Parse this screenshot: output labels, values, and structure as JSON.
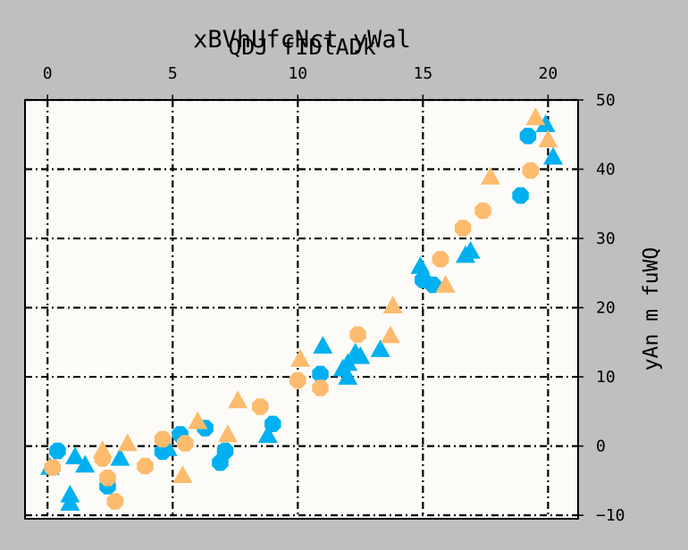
{
  "chart_data": {
    "type": "scatter",
    "title": "xBVhUfcNct yWal",
    "subtitle": "QDJ fIDlADk",
    "xlabel": "",
    "ylabel": "yAn m fuWQ",
    "xlim": [
      -0.9,
      21.2
    ],
    "ylim": [
      -10.5,
      50.0
    ],
    "xticks": [
      "0",
      "5",
      "10",
      "15",
      "20"
    ],
    "yticks": [
      "−10",
      "0",
      "10",
      "20",
      "30",
      "40",
      "50"
    ],
    "grid": true,
    "colors": {
      "triangle": "#00b0f0",
      "circle": "#00b0f0",
      "orange_circle": "#fdbb6e",
      "orange_triangle": "#fdbb6e",
      "background": "#fcfbf7",
      "figure": "#bfbfbf"
    },
    "series": [
      {
        "marker": "triangle",
        "color": "#00b0f0",
        "points": [
          [
            0.1,
            -3.0
          ],
          [
            0.9,
            -7.0
          ],
          [
            0.9,
            -8.2
          ],
          [
            1.1,
            -1.5
          ],
          [
            1.5,
            -2.7
          ],
          [
            2.9,
            -1.7
          ],
          [
            4.8,
            -0.3
          ],
          [
            8.8,
            1.6
          ],
          [
            11.0,
            14.5
          ],
          [
            11.8,
            11.2
          ],
          [
            12.0,
            12.0
          ],
          [
            12.3,
            13.5
          ],
          [
            12.5,
            13.0
          ],
          [
            12.0,
            10.0
          ],
          [
            13.3,
            14.0
          ],
          [
            14.9,
            26.0
          ],
          [
            16.7,
            27.6
          ],
          [
            16.9,
            28.2
          ],
          [
            19.9,
            46.5
          ],
          [
            20.2,
            41.8
          ]
        ]
      },
      {
        "marker": "circle",
        "color": "#00b0f0",
        "points": [
          [
            0.4,
            -0.7
          ],
          [
            2.4,
            -5.8
          ],
          [
            4.6,
            -0.8
          ],
          [
            5.3,
            1.7
          ],
          [
            6.3,
            2.6
          ],
          [
            7.1,
            -0.7
          ],
          [
            6.9,
            -2.4
          ],
          [
            9.0,
            3.2
          ],
          [
            10.9,
            10.4
          ],
          [
            15.0,
            24.0
          ],
          [
            15.4,
            23.3
          ],
          [
            19.2,
            44.8
          ],
          [
            18.9,
            36.2
          ]
        ]
      },
      {
        "marker": "circle",
        "color": "#fdbb6e",
        "points": [
          [
            0.2,
            -3.1
          ],
          [
            2.2,
            -1.8
          ],
          [
            2.4,
            -4.6
          ],
          [
            2.7,
            -8.0
          ],
          [
            3.9,
            -2.9
          ],
          [
            4.6,
            1.0
          ],
          [
            5.5,
            0.4
          ],
          [
            8.5,
            5.7
          ],
          [
            10.0,
            9.5
          ],
          [
            10.9,
            8.4
          ],
          [
            12.4,
            16.1
          ],
          [
            15.7,
            27.0
          ],
          [
            16.6,
            31.5
          ],
          [
            17.4,
            34.0
          ],
          [
            19.3,
            39.8
          ]
        ]
      },
      {
        "marker": "triangle",
        "color": "#fdbb6e",
        "points": [
          [
            2.2,
            -0.6
          ],
          [
            3.2,
            0.4
          ],
          [
            5.4,
            -4.2
          ],
          [
            6.0,
            3.6
          ],
          [
            7.2,
            1.7
          ],
          [
            7.6,
            6.6
          ],
          [
            10.1,
            12.6
          ],
          [
            13.8,
            20.3
          ],
          [
            13.7,
            16.0
          ],
          [
            15.9,
            23.3
          ],
          [
            17.7,
            38.9
          ],
          [
            19.5,
            47.5
          ],
          [
            20.0,
            44.3
          ]
        ]
      }
    ]
  }
}
